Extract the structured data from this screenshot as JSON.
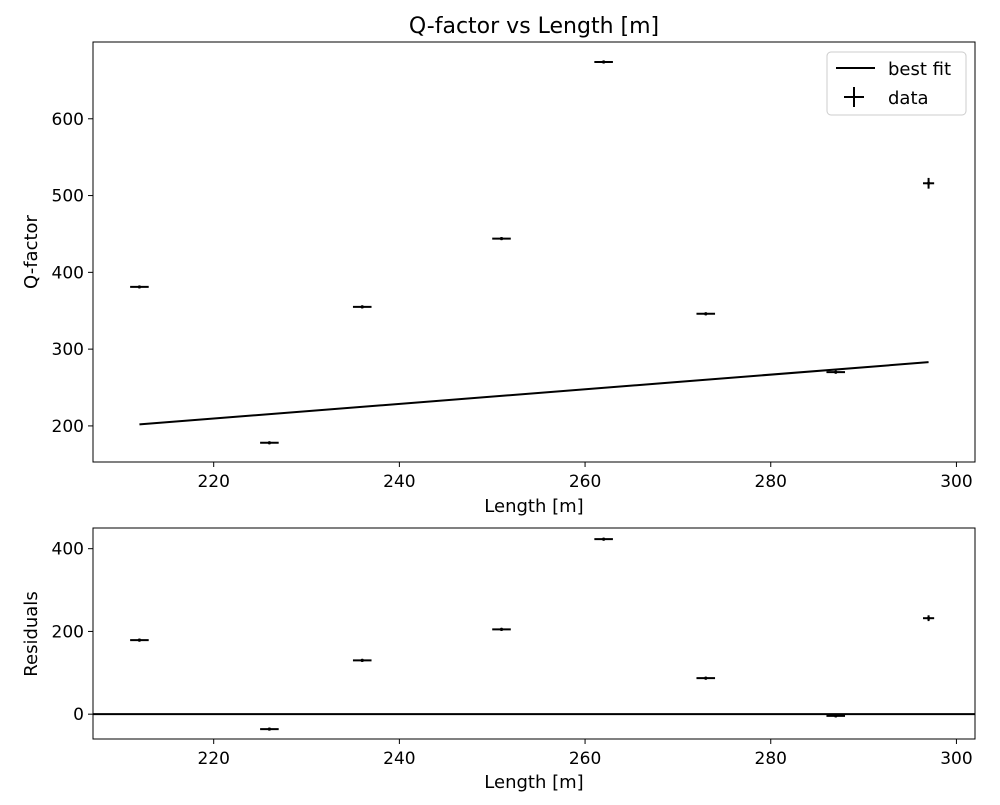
{
  "chart_data": [
    {
      "type": "scatter",
      "title": "Q-factor vs Length [m]",
      "xlabel": "Length [m]",
      "ylabel": "Q-factor",
      "xlim": [
        207,
        302
      ],
      "ylim": [
        153,
        700
      ],
      "xticks": [
        220,
        240,
        260,
        280,
        300
      ],
      "yticks": [
        200,
        300,
        400,
        500,
        600
      ],
      "legend": {
        "placement": "top-right",
        "entries": [
          "best fit",
          "data"
        ]
      },
      "series": [
        {
          "name": "data",
          "style": "errorbar",
          "x": [
            212,
            226,
            236,
            251,
            262,
            273,
            287,
            297
          ],
          "y": [
            381,
            178,
            355,
            444,
            674,
            346,
            270,
            516
          ],
          "yerr": [
            1.5,
            1.5,
            2,
            2,
            2,
            2,
            2,
            7
          ],
          "xerr": [
            1,
            1,
            1,
            1,
            1,
            1,
            1,
            0.6
          ]
        },
        {
          "name": "best fit",
          "style": "line",
          "x": [
            212,
            297
          ],
          "y": [
            202,
            283
          ]
        }
      ],
      "colors": {
        "marks": "#000000"
      }
    },
    {
      "type": "scatter",
      "title": "",
      "xlabel": "Length [m]",
      "ylabel": "Residuals",
      "xlim": [
        207,
        302
      ],
      "ylim": [
        -60,
        450
      ],
      "xticks": [
        220,
        240,
        260,
        280,
        300
      ],
      "yticks": [
        0,
        200,
        400
      ],
      "zero_line": true,
      "series": [
        {
          "style": "errorbar",
          "x": [
            212,
            226,
            236,
            251,
            262,
            273,
            287,
            297
          ],
          "y": [
            179,
            -36,
            130,
            205,
            423,
            87,
            -4,
            232
          ],
          "yerr": [
            1.5,
            1.5,
            2,
            2,
            2,
            2,
            2,
            7
          ],
          "xerr": [
            1,
            1,
            1,
            1,
            1,
            1,
            1,
            0.6
          ]
        }
      ],
      "colors": {
        "marks": "#000000"
      }
    }
  ]
}
